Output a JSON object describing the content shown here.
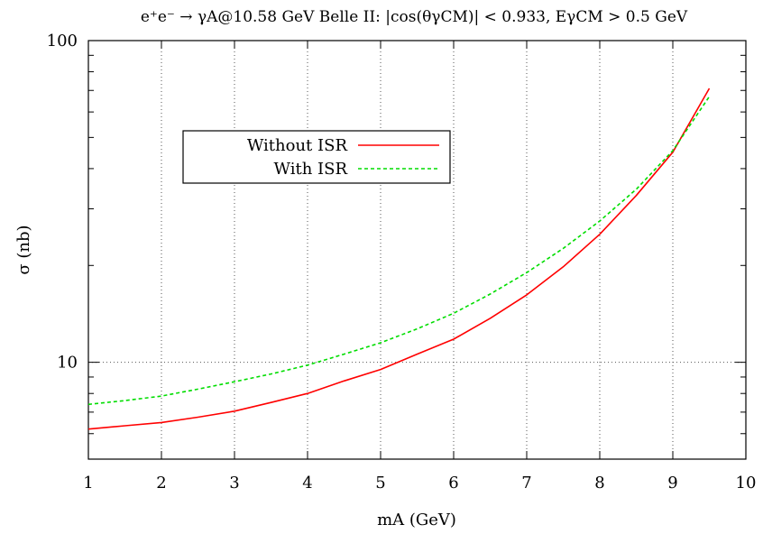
{
  "chart_data": {
    "type": "line",
    "title": "e⁺e⁻ → γA@10.58 GeV Belle II: |cos(θγCM)| < 0.933, EγCM > 0.5 GeV",
    "xlabel": "mA (GeV)",
    "ylabel": "σ (nb)",
    "xlim": [
      1,
      10
    ],
    "ylim": [
      5,
      100
    ],
    "y_scale": "log",
    "grid": true,
    "legend_position": "upper-left",
    "x_ticks": [
      "1",
      "2",
      "3",
      "4",
      "5",
      "6",
      "7",
      "8",
      "9",
      "10"
    ],
    "x_tick_values": [
      1,
      2,
      3,
      4,
      5,
      6,
      7,
      8,
      9,
      10
    ],
    "y_tick_labels": [
      "10",
      "100"
    ],
    "y_tick_values": [
      10,
      100
    ],
    "y_minor_ticks": [
      5,
      6,
      7,
      8,
      9,
      20,
      30,
      40,
      50,
      60,
      70,
      80,
      90
    ],
    "series": [
      {
        "name": "Without ISR",
        "color": "#ff0000",
        "dash": "solid",
        "x": [
          1,
          1.5,
          2,
          2.5,
          3,
          3.5,
          4,
          4.5,
          5,
          5.5,
          6,
          6.5,
          7,
          7.5,
          8,
          8.5,
          9,
          9.5
        ],
        "y": [
          6.2,
          6.35,
          6.5,
          6.75,
          7.05,
          7.5,
          8.0,
          8.75,
          9.5,
          10.6,
          11.8,
          13.7,
          16.2,
          19.8,
          25.0,
          33.0,
          45.0,
          71.0
        ]
      },
      {
        "name": "With ISR",
        "color": "#00dd00",
        "dash": "dashed",
        "x": [
          1,
          1.5,
          2,
          2.5,
          3,
          3.5,
          4,
          4.5,
          5,
          5.5,
          6,
          6.5,
          7,
          7.5,
          8,
          8.5,
          9,
          9.5
        ],
        "y": [
          7.4,
          7.6,
          7.85,
          8.25,
          8.7,
          9.2,
          9.8,
          10.6,
          11.5,
          12.7,
          14.2,
          16.3,
          19.0,
          22.6,
          27.5,
          34.5,
          45.5,
          67.0
        ]
      }
    ]
  }
}
